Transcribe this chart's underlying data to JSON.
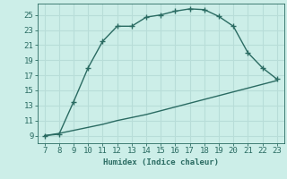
{
  "title": "",
  "xlabel": "Humidex (Indice chaleur)",
  "background_color": "#cceee8",
  "grid_color": "#b8ddd8",
  "line_color": "#2a6b62",
  "x_curve": [
    7,
    8,
    9,
    10,
    11,
    12,
    13,
    14,
    15,
    16,
    17,
    18,
    19,
    20,
    21,
    22,
    23
  ],
  "y_curve": [
    9.0,
    9.2,
    13.5,
    18.0,
    21.5,
    23.5,
    23.5,
    24.7,
    25.0,
    25.5,
    25.8,
    25.7,
    24.8,
    23.5,
    20.0,
    18.0,
    16.5
  ],
  "x_line": [
    7,
    8,
    9,
    10,
    11,
    12,
    13,
    14,
    15,
    16,
    17,
    18,
    19,
    20,
    21,
    22,
    23
  ],
  "y_line": [
    9.0,
    9.3,
    9.7,
    10.1,
    10.5,
    11.0,
    11.4,
    11.8,
    12.3,
    12.8,
    13.3,
    13.8,
    14.3,
    14.8,
    15.3,
    15.8,
    16.3
  ],
  "xlim": [
    6.5,
    23.5
  ],
  "ylim": [
    8.0,
    26.5
  ],
  "xticks": [
    7,
    8,
    9,
    10,
    11,
    12,
    13,
    14,
    15,
    16,
    17,
    18,
    19,
    20,
    21,
    22,
    23
  ],
  "yticks": [
    9,
    11,
    13,
    15,
    17,
    19,
    21,
    23,
    25
  ],
  "font_size": 6.5,
  "marker": "+",
  "marker_size": 4,
  "marker_linewidth": 1.0,
  "line_width": 1.0
}
